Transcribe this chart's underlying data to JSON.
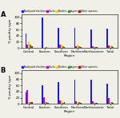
{
  "title_A": "A",
  "title_B": "B",
  "regions": [
    "Central",
    "Eastern",
    "Southern",
    "Northern",
    "Northeastern",
    "Total"
  ],
  "species": [
    "Backyard chickens",
    "Ducks",
    "Broilers",
    "Layers",
    "Other species"
  ],
  "colors": [
    "#1a1aff",
    "#cc00cc",
    "#ffcc00",
    "#339933",
    "#cc0000"
  ],
  "panel_A": {
    "Backyard chickens": [
      48,
      98,
      65,
      65,
      60,
      63
    ],
    "Ducks": [
      12,
      1,
      12,
      5,
      5,
      8
    ],
    "Broilers": [
      20,
      1,
      12,
      10,
      3,
      8
    ],
    "Layers": [
      12,
      2,
      5,
      5,
      3,
      5
    ],
    "Other species": [
      5,
      1,
      3,
      3,
      2,
      3
    ]
  },
  "panel_B": {
    "Backyard chickens": [
      38,
      60,
      70,
      78,
      78,
      65
    ],
    "Ducks": [
      45,
      22,
      12,
      8,
      8,
      18
    ],
    "Broilers": [
      5,
      8,
      10,
      5,
      2,
      5
    ],
    "Layers": [
      5,
      5,
      3,
      5,
      3,
      5
    ],
    "Other species": [
      5,
      3,
      5,
      2,
      2,
      3
    ]
  },
  "ylabel": "% poultry type",
  "xlabel": "Region",
  "ylim": [
    0,
    110
  ],
  "yticks": [
    0,
    20,
    40,
    60,
    80,
    100
  ],
  "bg_color": "#f0f0e8"
}
